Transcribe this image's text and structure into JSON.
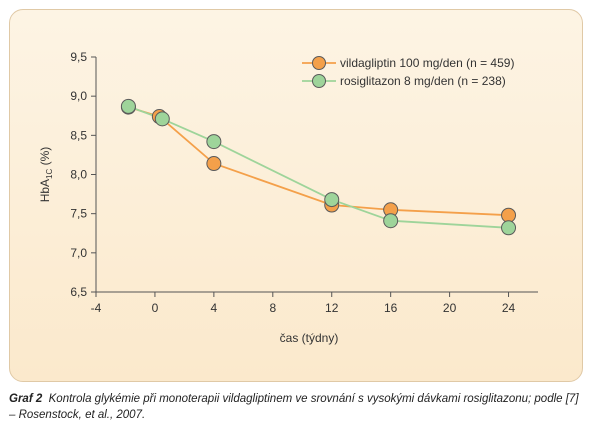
{
  "chart_data": {
    "type": "line",
    "xlabel": "čas (týdny)",
    "ylabel_main": "HbA",
    "ylabel_sub": "1C",
    "ylabel_unit": " (%)",
    "xlim": [
      -4,
      26
    ],
    "ylim": [
      6.5,
      9.5
    ],
    "xticks": [
      -4,
      0,
      4,
      8,
      12,
      16,
      20,
      24
    ],
    "xtick_labels": [
      "-4",
      "0",
      "4",
      "8",
      "12",
      "16",
      "20",
      "24"
    ],
    "yticks": [
      6.5,
      7.0,
      7.5,
      8.0,
      8.5,
      9.0,
      9.5
    ],
    "ytick_labels": [
      "6,5",
      "7,0",
      "7,5",
      "8,0",
      "8,5",
      "9,0",
      "9,5"
    ],
    "grid": false,
    "legend_position": "top-right",
    "series": [
      {
        "name": "vildagliptin 100 mg/den (n = 459)",
        "color": "#f4a04a",
        "x": [
          -1.8,
          0.3,
          4,
          12,
          16,
          24
        ],
        "y": [
          8.86,
          8.74,
          8.14,
          7.61,
          7.55,
          7.48
        ]
      },
      {
        "name": "rosiglitazon 8 mg/den (n = 238)",
        "color": "#9ed49a",
        "x": [
          -1.8,
          0.5,
          4,
          12,
          16,
          24
        ],
        "y": [
          8.87,
          8.71,
          8.42,
          7.68,
          7.41,
          7.32
        ]
      }
    ]
  },
  "caption": {
    "label": "Graf 2",
    "text": "Kontrola glykémie při monoterapii vildagliptinem ve srovnání s vysokými dávkami rosiglitazonu; podle [7] – Rosenstock, et al., 2007."
  }
}
